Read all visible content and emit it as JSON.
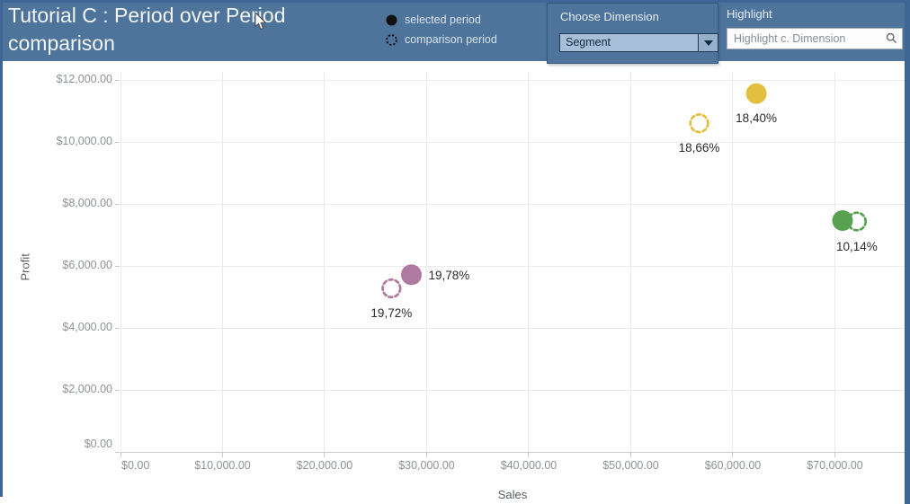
{
  "window": {
    "frame_color": "#3E6694",
    "header_bg": "#4E749C"
  },
  "header": {
    "title": "Tutorial C : Period over Period comparison",
    "legend": {
      "items": [
        {
          "marker": "filled-circle",
          "label": "selected period"
        },
        {
          "marker": "dashed-circle",
          "label": "comparison period"
        }
      ]
    },
    "choose_dimension": {
      "label": "Choose Dimension",
      "value": "Segment"
    },
    "highlight": {
      "label": "Highlight",
      "placeholder": "Highlight c. Dimension"
    }
  },
  "chart_data": {
    "type": "scatter",
    "xlabel": "Sales",
    "ylabel": "Profit",
    "xlim": [
      0,
      76830
    ],
    "ylim": [
      0,
      12270
    ],
    "grid": true,
    "x_ticks": [
      {
        "value": 0,
        "label": "$0.00"
      },
      {
        "value": 10000,
        "label": "$10,000.00"
      },
      {
        "value": 20000,
        "label": "$20,000.00"
      },
      {
        "value": 30000,
        "label": "$30,000.00"
      },
      {
        "value": 40000,
        "label": "$40,000.00"
      },
      {
        "value": 50000,
        "label": "$50,000.00"
      },
      {
        "value": 60000,
        "label": "$60,000.00"
      },
      {
        "value": 70000,
        "label": "$70,000.00"
      }
    ],
    "y_ticks": [
      {
        "value": 0,
        "label": "$0.00"
      },
      {
        "value": 2000,
        "label": "$2,000.00"
      },
      {
        "value": 4000,
        "label": "$4,000.00"
      },
      {
        "value": 6000,
        "label": "$6,000.00"
      },
      {
        "value": 8000,
        "label": "$8,000.00"
      },
      {
        "value": 10000,
        "label": "$10,000.00"
      },
      {
        "value": 12000,
        "label": "$12,000.00"
      }
    ],
    "series": [
      {
        "name": "segment-yellow",
        "color": "#E3BF3F",
        "points": [
          {
            "period": "selected",
            "marker": "filled",
            "sales": 62300,
            "profit": 11570,
            "label": "18,40%",
            "label_pos": "below"
          },
          {
            "period": "comparison",
            "marker": "dashed",
            "sales": 56700,
            "profit": 10610,
            "label": "18,66%",
            "label_pos": "below"
          }
        ]
      },
      {
        "name": "segment-green",
        "color": "#57A151",
        "points": [
          {
            "period": "selected",
            "marker": "filled",
            "sales": 70750,
            "profit": 7470,
            "label": "",
            "label_pos": "none"
          },
          {
            "period": "comparison",
            "marker": "dashed",
            "sales": 72150,
            "profit": 7440,
            "label": "10,14%",
            "label_pos": "below"
          }
        ]
      },
      {
        "name": "segment-purple",
        "color": "#AE7AA1",
        "points": [
          {
            "period": "selected",
            "marker": "filled",
            "sales": 28500,
            "profit": 5720,
            "label": "19,78%",
            "label_pos": "right"
          },
          {
            "period": "comparison",
            "marker": "dashed",
            "sales": 26550,
            "profit": 5280,
            "label": "19,72%",
            "label_pos": "below"
          }
        ]
      }
    ]
  }
}
